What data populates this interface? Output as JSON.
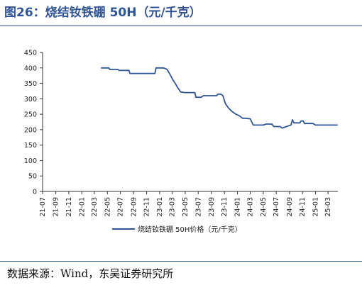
{
  "title": "图26：烧结钕铁硼 50H（元/千克）",
  "source": "数据来源：Wind，东吴证券研究所",
  "colors": {
    "title": "#2f5597",
    "series": "#2f5597",
    "axis": "#333333"
  },
  "chart_data": {
    "type": "line",
    "title": "",
    "xlabel": "",
    "ylabel": "",
    "ylim": [
      0,
      450
    ],
    "yticks": [
      0,
      50,
      100,
      150,
      200,
      250,
      300,
      350,
      400,
      450
    ],
    "xticks": [
      "21-07",
      "21-09",
      "21-11",
      "22-01",
      "22-03",
      "22-05",
      "22-07",
      "22-09",
      "22-11",
      "23-01",
      "23-03",
      "23-05",
      "23-07",
      "23-09",
      "23-11",
      "24-01",
      "24-03",
      "24-05",
      "24-07",
      "24-09",
      "24-11",
      "25-01",
      "25-03"
    ],
    "grid": false,
    "legend": "bottom-center",
    "series": [
      {
        "name": "烧结钕铁硼 50H价格（元/千克）",
        "color": "#2f5597",
        "points": [
          [
            "2022-04-01",
            400
          ],
          [
            "2022-05-08",
            400
          ],
          [
            "2022-05-12",
            395
          ],
          [
            "2022-06-20",
            395
          ],
          [
            "2022-06-25",
            392
          ],
          [
            "2022-08-10",
            392
          ],
          [
            "2022-08-15",
            382
          ],
          [
            "2022-12-10",
            382
          ],
          [
            "2022-12-15",
            400
          ],
          [
            "2023-01-20",
            400
          ],
          [
            "2023-02-05",
            395
          ],
          [
            "2023-02-18",
            380
          ],
          [
            "2023-03-01",
            365
          ],
          [
            "2023-03-15",
            350
          ],
          [
            "2023-03-28",
            335
          ],
          [
            "2023-04-10",
            322
          ],
          [
            "2023-05-01",
            320
          ],
          [
            "2023-06-15",
            320
          ],
          [
            "2023-06-20",
            305
          ],
          [
            "2023-07-15",
            305
          ],
          [
            "2023-07-25",
            310
          ],
          [
            "2023-09-25",
            310
          ],
          [
            "2023-10-01",
            315
          ],
          [
            "2023-10-15",
            315
          ],
          [
            "2023-10-25",
            310
          ],
          [
            "2023-11-05",
            285
          ],
          [
            "2023-11-20",
            270
          ],
          [
            "2023-12-05",
            260
          ],
          [
            "2023-12-25",
            250
          ],
          [
            "2024-01-10",
            245
          ],
          [
            "2024-01-25",
            237
          ],
          [
            "2024-02-10",
            237
          ],
          [
            "2024-03-01",
            235
          ],
          [
            "2024-03-15",
            215
          ],
          [
            "2024-05-01",
            215
          ],
          [
            "2024-05-15",
            218
          ],
          [
            "2024-06-10",
            218
          ],
          [
            "2024-06-20",
            210
          ],
          [
            "2024-07-20",
            210
          ],
          [
            "2024-07-28",
            205
          ],
          [
            "2024-08-10",
            208
          ],
          [
            "2024-08-25",
            212
          ],
          [
            "2024-09-08",
            215
          ],
          [
            "2024-09-15",
            232
          ],
          [
            "2024-09-22",
            222
          ],
          [
            "2024-10-20",
            222
          ],
          [
            "2024-10-25",
            228
          ],
          [
            "2024-11-05",
            228
          ],
          [
            "2024-11-10",
            220
          ],
          [
            "2024-12-20",
            220
          ],
          [
            "2025-01-01",
            215
          ],
          [
            "2025-04-15",
            215
          ]
        ]
      }
    ]
  }
}
